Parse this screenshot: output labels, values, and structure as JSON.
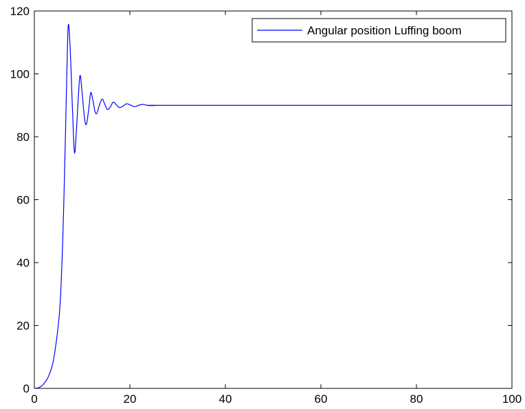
{
  "chart_data": {
    "type": "line",
    "title": "",
    "xlabel": "",
    "ylabel": "",
    "xlim": [
      0,
      100
    ],
    "ylim": [
      0,
      120
    ],
    "x_ticks": [
      0,
      20,
      40,
      60,
      80,
      100
    ],
    "y_ticks": [
      0,
      20,
      40,
      60,
      80,
      100,
      120
    ],
    "x_tick_labels": [
      "0",
      "20",
      "40",
      "60",
      "80",
      "100"
    ],
    "y_tick_labels": [
      "0",
      "20",
      "40",
      "60",
      "80",
      "100",
      "120"
    ],
    "grid": false,
    "legend_position": "top-right",
    "series": [
      {
        "name": "Angular position Luffing boom",
        "color": "#0000ff",
        "points": [
          [
            0,
            0
          ],
          [
            1,
            0.3
          ],
          [
            2,
            1.5
          ],
          [
            3,
            4
          ],
          [
            4,
            9
          ],
          [
            5,
            20
          ],
          [
            5.5,
            30
          ],
          [
            6,
            50
          ],
          [
            6.5,
            80
          ],
          [
            6.8,
            100
          ],
          [
            7.1,
            115.5
          ],
          [
            7.5,
            108
          ],
          [
            8,
            88
          ],
          [
            8.4,
            75
          ],
          [
            8.8,
            82
          ],
          [
            9.3,
            95
          ],
          [
            9.6,
            99.5
          ],
          [
            10,
            94
          ],
          [
            10.5,
            86
          ],
          [
            10.9,
            84
          ],
          [
            11.4,
            89
          ],
          [
            11.8,
            94
          ],
          [
            12.2,
            92
          ],
          [
            12.7,
            88
          ],
          [
            13.1,
            87.5
          ],
          [
            13.6,
            90
          ],
          [
            14.2,
            92
          ],
          [
            14.7,
            90.5
          ],
          [
            15.3,
            88.7
          ],
          [
            15.9,
            89.5
          ],
          [
            16.5,
            91
          ],
          [
            17.1,
            90.3
          ],
          [
            17.8,
            89.3
          ],
          [
            18.6,
            89.8
          ],
          [
            19.3,
            90.5
          ],
          [
            20.1,
            90.1
          ],
          [
            21,
            89.6
          ],
          [
            21.8,
            90
          ],
          [
            22.7,
            90.3
          ],
          [
            23.6,
            90
          ],
          [
            24.5,
            89.9
          ],
          [
            26,
            90
          ],
          [
            30,
            90
          ],
          [
            100,
            90
          ]
        ]
      }
    ]
  }
}
